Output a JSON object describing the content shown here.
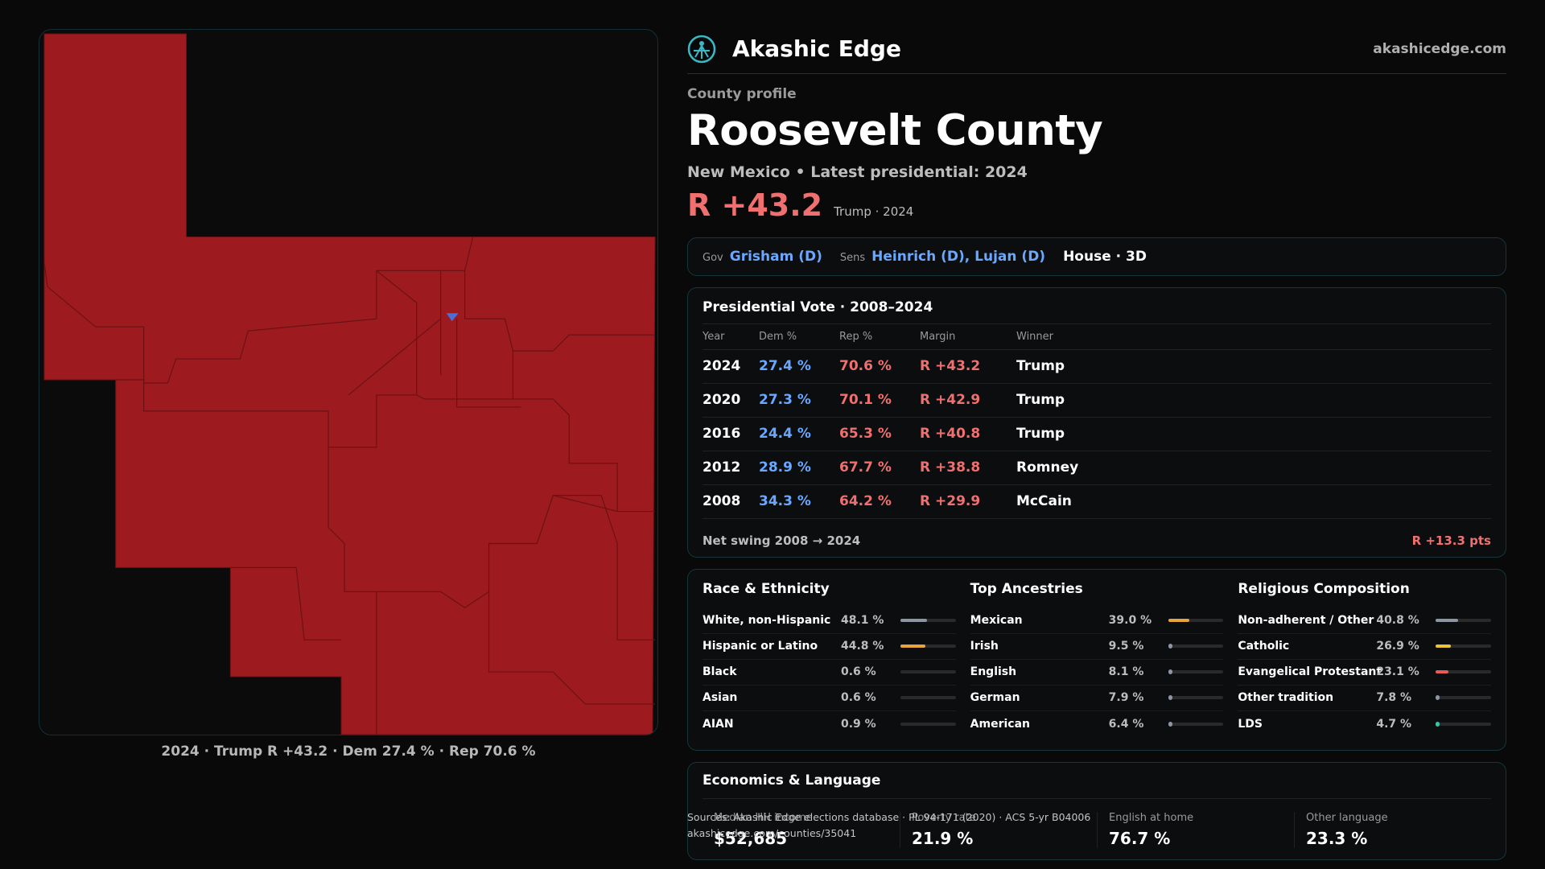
{
  "brand": {
    "name": "Akashic Edge",
    "url": "akashicedge.com",
    "logo_icon": "akashic-edge-logo-icon"
  },
  "profile": {
    "kicker": "County profile",
    "title": "Roosevelt County",
    "subtitle": "New Mexico • Latest presidential: 2024",
    "margin": "R +43.2",
    "margin_note": "Trump · 2024"
  },
  "officials": {
    "gov_label": "Gov",
    "gov": "Grisham (D)",
    "sens_label": "Sens",
    "sens": "Heinrich (D), Lujan (D)",
    "house": "House · 3D"
  },
  "presidential": {
    "title": "Presidential Vote · 2008–2024",
    "headers": [
      "Year",
      "Dem %",
      "Rep %",
      "Margin",
      "Winner"
    ],
    "rows": [
      {
        "year": "2024",
        "dem": "27.4 %",
        "rep": "70.6 %",
        "margin": "R +43.2",
        "winner": "Trump"
      },
      {
        "year": "2020",
        "dem": "27.3 %",
        "rep": "70.1 %",
        "margin": "R +42.9",
        "winner": "Trump"
      },
      {
        "year": "2016",
        "dem": "24.4 %",
        "rep": "65.3 %",
        "margin": "R +40.8",
        "winner": "Trump"
      },
      {
        "year": "2012",
        "dem": "28.9 %",
        "rep": "67.7 %",
        "margin": "R +38.8",
        "winner": "Romney"
      },
      {
        "year": "2008",
        "dem": "34.3 %",
        "rep": "64.2 %",
        "margin": "R +29.9",
        "winner": "McCain"
      }
    ],
    "swing_label": "Net swing 2008 → 2024",
    "swing_value": "R +13.3 pts"
  },
  "race": {
    "title": "Race & Ethnicity",
    "rows": [
      {
        "label": "White, non-Hispanic",
        "pct": "48.1 %",
        "value": 48.1,
        "color": "#8c95a3"
      },
      {
        "label": "Hispanic or Latino",
        "pct": "44.8 %",
        "value": 44.8,
        "color": "#e8a33a"
      },
      {
        "label": "Black",
        "pct": "0.6 %",
        "value": 0.6,
        "color": "#6a6a6a"
      },
      {
        "label": "Asian",
        "pct": "0.6 %",
        "value": 0.6,
        "color": "#6a6a6a"
      },
      {
        "label": "AIAN",
        "pct": "0.9 %",
        "value": 0.9,
        "color": "#d05a2a"
      }
    ]
  },
  "ancestry": {
    "title": "Top Ancestries",
    "rows": [
      {
        "label": "Mexican",
        "pct": "39.0 %",
        "value": 39.0,
        "color": "#e8a33a"
      },
      {
        "label": "Irish",
        "pct": "9.5 %",
        "value": 9.5,
        "color": "#8c95a3"
      },
      {
        "label": "English",
        "pct": "8.1 %",
        "value": 8.1,
        "color": "#8c95a3"
      },
      {
        "label": "German",
        "pct": "7.9 %",
        "value": 7.9,
        "color": "#8c95a3"
      },
      {
        "label": "American",
        "pct": "6.4 %",
        "value": 6.4,
        "color": "#8c95a3"
      }
    ]
  },
  "religion": {
    "title": "Religious Composition",
    "rows": [
      {
        "label": "Non-adherent / Other",
        "pct": "40.8 %",
        "value": 40.8,
        "color": "#8c95a3"
      },
      {
        "label": "Catholic",
        "pct": "26.9 %",
        "value": 26.9,
        "color": "#e8c43a"
      },
      {
        "label": "Evangelical Protestant",
        "pct": "23.1 %",
        "value": 23.1,
        "color": "#e85a5a"
      },
      {
        "label": "Other tradition",
        "pct": "7.8 %",
        "value": 7.8,
        "color": "#8c95a3"
      },
      {
        "label": "LDS",
        "pct": "4.7 %",
        "value": 4.7,
        "color": "#3ac0a8"
      }
    ]
  },
  "economics": {
    "title": "Economics & Language",
    "cells": [
      {
        "label": "Median HH income",
        "value": "$52,685"
      },
      {
        "label": "Poverty rate",
        "value": "21.9 %"
      },
      {
        "label": "English at home",
        "value": "76.7 %"
      },
      {
        "label": "Other language",
        "value": "23.3 %"
      }
    ]
  },
  "map": {
    "caption": "2024 · Trump R +43.2 · Dem 27.4 % · Rep 70.6 %",
    "rep_color": "#9d1b1e",
    "dem_color": "#4a6fd6"
  },
  "sources": {
    "line1": "Sources: Akashic Edge elections database · PL 94-171 (2020) · ACS 5-yr B04006",
    "line2": "akashicedge.com/counties/35041"
  }
}
